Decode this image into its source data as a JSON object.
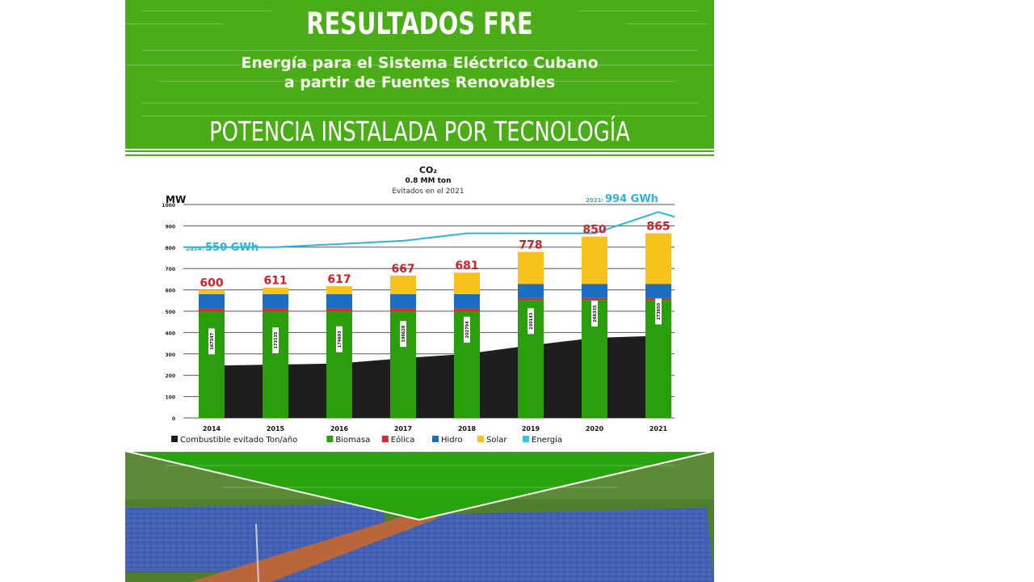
{
  "header": {
    "title": "RESULTADOS FRE",
    "subtitle_line1": "Energía para el Sistema Eléctrico Cubano",
    "subtitle_line2": "a partir de Fuentes Renovables",
    "section_title": "POTENCIA INSTALADA POR TECNOLOGÍA"
  },
  "co2_note": {
    "label": "CO₂",
    "value": "0.8 MM ton",
    "caption": "Evitados en el 2021"
  },
  "colors": {
    "header_green": "#4aad17",
    "biomasa": "#2b9e0e",
    "eolica": "#c0392b",
    "hidro": "#1a6fc2",
    "solar": "#f7c21b",
    "energia": "#2bb5dc",
    "combustible": "#1e1e1e",
    "total_label": "#d0202a"
  },
  "chart_data": {
    "type": "bar",
    "title": "POTENCIA INSTALADA POR TECNOLOGÍA",
    "ylabel": "MW",
    "xlabel": "",
    "ylim": [
      0,
      1000
    ],
    "yticks": [
      0,
      100,
      200,
      300,
      400,
      500,
      600,
      700,
      800,
      900,
      1000
    ],
    "grid": true,
    "legend_position": "bottom",
    "categories": [
      "2014",
      "2015",
      "2016",
      "2017",
      "2018",
      "2019",
      "2020",
      "2021"
    ],
    "totals": [
      600,
      611,
      617,
      667,
      681,
      778,
      850,
      865
    ],
    "series": [
      {
        "name": "Biomasa",
        "type": "stacked-bar",
        "values": [
          500,
          500,
          500,
          500,
          500,
          550,
          550,
          550
        ]
      },
      {
        "name": "Eólica",
        "type": "stacked-bar",
        "values": [
          12,
          12,
          12,
          12,
          12,
          12,
          12,
          12
        ]
      },
      {
        "name": "Hidro",
        "type": "stacked-bar",
        "values": [
          68,
          68,
          68,
          68,
          68,
          66,
          66,
          66
        ]
      },
      {
        "name": "Solar",
        "type": "stacked-bar",
        "values": [
          20,
          31,
          37,
          87,
          101,
          150,
          222,
          237
        ]
      },
      {
        "name": "Combustible evitado Ton/año",
        "type": "area",
        "values": [
          245,
          250,
          255,
          280,
          300,
          340,
          375,
          385
        ],
        "labels": [
          "167347",
          "173135",
          "174693",
          "196628",
          "202794",
          "230143",
          "266335",
          "273650"
        ]
      },
      {
        "name": "Energía",
        "type": "line",
        "values": [
          800,
          800,
          815,
          830,
          865,
          865,
          865,
          965
        ]
      }
    ],
    "annotations": [
      {
        "text_prefix": "2014:",
        "text": "550 GWh",
        "series": "Energía"
      },
      {
        "text_prefix": "2021:",
        "text": "994 GWh",
        "series": "Energía"
      }
    ]
  },
  "legend": [
    {
      "label": "Combustible evitado Ton/año",
      "color": "#1e1e1e"
    },
    {
      "label": "Biomasa",
      "color": "#2b9e0e"
    },
    {
      "label": "Eólica",
      "color": "#d62b2b"
    },
    {
      "label": "Hidro",
      "color": "#1a6fc2"
    },
    {
      "label": "Solar",
      "color": "#f7c21b"
    },
    {
      "label": "Energía",
      "color": "#2bc6ea"
    }
  ],
  "energy_labels": {
    "start_prefix": "2014:",
    "start_value": "550 GWh",
    "end_prefix": "2021:",
    "end_value": "994 GWh"
  }
}
